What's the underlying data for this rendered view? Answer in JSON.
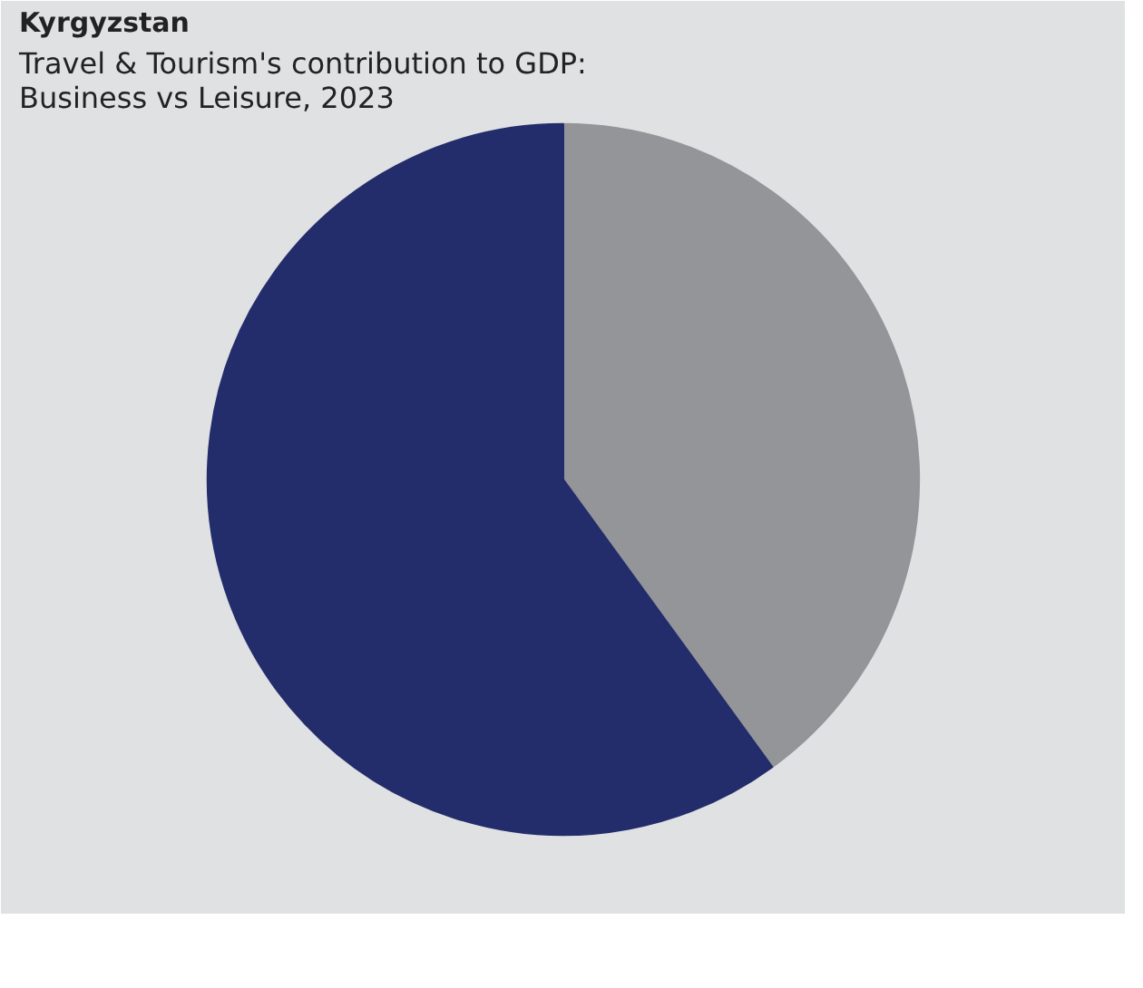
{
  "chart_data": {
    "type": "pie",
    "title": "Kyrgyzstan",
    "subtitle": "Travel & Tourism's contribution to GDP: Business vs Leisure, 2023",
    "categories": [
      null,
      null
    ],
    "values": [
      40,
      60
    ],
    "colors": [
      "#939598",
      "#232d6b"
    ]
  }
}
